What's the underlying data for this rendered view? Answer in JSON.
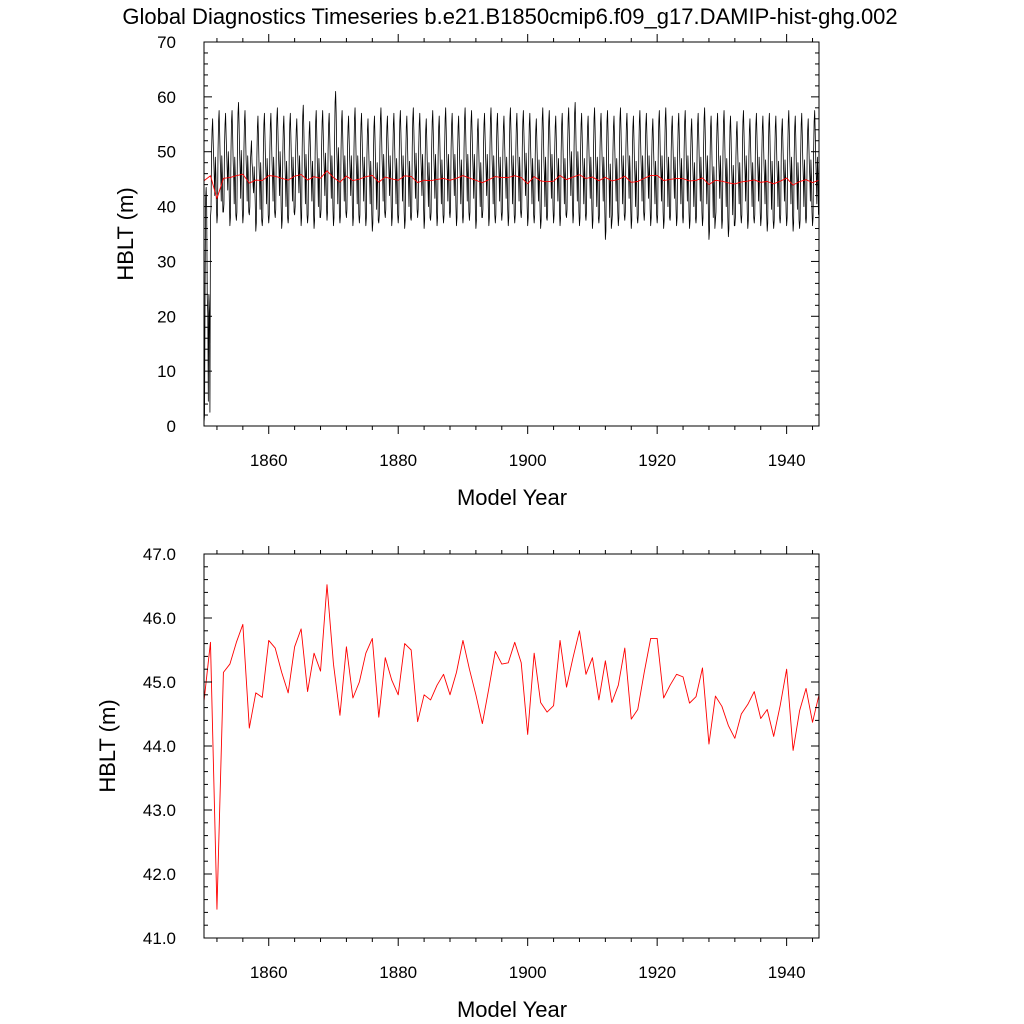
{
  "title": "Global Diagnostics Timeseries b.e21.B1850cmip6.f09_g17.DAMIP-hist-ghg.002",
  "colors": {
    "monthly": "#000000",
    "annual": "#ff0000",
    "axis": "#000000"
  },
  "chart_data": [
    {
      "type": "line",
      "xlabel": "Model Year",
      "ylabel": "HBLT (m)",
      "xlim": [
        1850,
        1945
      ],
      "ylim": [
        0,
        70
      ],
      "xticks": [
        1860,
        1880,
        1900,
        1920,
        1940
      ],
      "xtick_labels": [
        "1860",
        "1880",
        "1900",
        "1920",
        "1940"
      ],
      "yticks": [
        0,
        10,
        20,
        30,
        40,
        50,
        60,
        70
      ],
      "ytick_labels": [
        "0",
        "10",
        "20",
        "30",
        "40",
        "50",
        "60",
        "70"
      ],
      "grid": false,
      "series": [
        {
          "color": "#000000",
          "kind": "monthly",
          "x_start": 1850.0,
          "dx": 0.0833333,
          "seasonal_max": [
            43.5,
            56.0,
            57.5,
            57.0,
            57.5,
            59.0,
            57.5,
            52.0,
            56.5,
            57.0,
            57.0,
            58.0,
            56.5,
            57.0,
            56.0,
            58.5,
            55.5,
            57.5,
            57.5,
            57.0,
            61.0,
            57.5,
            56.5,
            58.0,
            57.0,
            56.0,
            56.5,
            58.0,
            56.5,
            57.0,
            57.5,
            56.5,
            58.0,
            57.0,
            56.0,
            57.5,
            56.5,
            58.0,
            57.0,
            56.5,
            58.0,
            57.5,
            56.0,
            57.0,
            58.0,
            57.0,
            56.5,
            58.0,
            57.0,
            57.5,
            57.0,
            56.0,
            58.0,
            57.5,
            56.5,
            57.0,
            58.0,
            59.0,
            57.0,
            56.5,
            58.0,
            57.0,
            57.5,
            56.5,
            58.0,
            57.0,
            56.5,
            57.5,
            57.0,
            56.0,
            57.5,
            58.0,
            56.5,
            57.0,
            57.5,
            56.0,
            57.0,
            58.0,
            56.5,
            57.0,
            57.5,
            56.5,
            55.5,
            57.5,
            56.0,
            57.0,
            56.5,
            57.0,
            56.5,
            56.0,
            57.5,
            56.5,
            57.0,
            56.0,
            57.5
          ],
          "seasonal_min": [
            0.5,
            38.0,
            37.0,
            39.0,
            36.5,
            37.5,
            37.0,
            38.5,
            35.5,
            36.5,
            37.0,
            38.0,
            36.0,
            37.0,
            38.5,
            36.5,
            37.0,
            36.0,
            38.0,
            37.5,
            36.5,
            37.0,
            38.0,
            36.5,
            37.0,
            36.5,
            35.5,
            37.0,
            38.0,
            36.5,
            37.0,
            36.0,
            37.5,
            38.0,
            36.0,
            37.5,
            36.5,
            37.0,
            38.0,
            36.5,
            37.0,
            37.5,
            36.0,
            38.0,
            36.5,
            37.0,
            37.5,
            36.5,
            37.0,
            38.0,
            36.5,
            37.0,
            36.0,
            37.5,
            37.0,
            36.5,
            38.0,
            37.0,
            36.5,
            37.5,
            36.0,
            37.0,
            34.0,
            37.0,
            36.5,
            37.5,
            36.0,
            37.0,
            37.5,
            36.5,
            37.0,
            36.0,
            37.5,
            36.5,
            37.0,
            36.0,
            37.0,
            36.5,
            34.0,
            37.5,
            36.0,
            34.5,
            36.5,
            37.0,
            36.0,
            37.0,
            36.5,
            35.5,
            36.0,
            37.0,
            36.5,
            35.5,
            36.0,
            37.0,
            36.5
          ]
        },
        {
          "color": "#ff0000",
          "kind": "annual",
          "x": [
            1850,
            1851,
            1852,
            1853,
            1854,
            1855,
            1856,
            1857,
            1858,
            1859,
            1860,
            1861,
            1862,
            1863,
            1864,
            1865,
            1866,
            1867,
            1868,
            1869,
            1870,
            1871,
            1872,
            1873,
            1874,
            1875,
            1876,
            1877,
            1878,
            1879,
            1880,
            1881,
            1882,
            1883,
            1884,
            1885,
            1886,
            1887,
            1888,
            1889,
            1890,
            1891,
            1892,
            1893,
            1894,
            1895,
            1896,
            1897,
            1898,
            1899,
            1900,
            1901,
            1902,
            1903,
            1904,
            1905,
            1906,
            1907,
            1908,
            1909,
            1910,
            1911,
            1912,
            1913,
            1914,
            1915,
            1916,
            1917,
            1918,
            1919,
            1920,
            1921,
            1922,
            1923,
            1924,
            1925,
            1926,
            1927,
            1928,
            1929,
            1930,
            1931,
            1932,
            1933,
            1934,
            1935,
            1936,
            1937,
            1938,
            1939,
            1940,
            1941,
            1942,
            1943,
            1944,
            1945
          ],
          "values": [
            44.7,
            45.62,
            41.45,
            45.15,
            45.28,
            45.62,
            45.9,
            44.28,
            44.83,
            44.76,
            45.65,
            45.53,
            45.15,
            44.83,
            45.55,
            45.83,
            44.85,
            45.45,
            45.17,
            46.52,
            45.28,
            44.48,
            45.55,
            44.75,
            45.0,
            45.45,
            45.68,
            44.45,
            45.38,
            45.03,
            44.8,
            45.6,
            45.5,
            44.38,
            44.8,
            44.72,
            44.95,
            45.12,
            44.8,
            45.15,
            45.65,
            45.2,
            44.8,
            44.35,
            44.9,
            45.48,
            45.28,
            45.3,
            45.62,
            45.3,
            44.18,
            45.45,
            44.68,
            44.53,
            44.63,
            45.65,
            44.92,
            45.38,
            45.8,
            45.12,
            45.38,
            44.72,
            45.33,
            44.68,
            44.95,
            45.53,
            44.42,
            44.57,
            45.15,
            45.68,
            45.68,
            44.75,
            44.95,
            45.12,
            45.08,
            44.67,
            44.77,
            45.22,
            44.03,
            44.78,
            44.62,
            44.32,
            44.12,
            44.5,
            44.65,
            44.85,
            44.43,
            44.57,
            44.15,
            44.63,
            45.2,
            43.93,
            44.55,
            44.9,
            44.37,
            44.8
          ]
        }
      ]
    },
    {
      "type": "line",
      "xlabel": "Model Year",
      "ylabel": "HBLT (m)",
      "xlim": [
        1850,
        1945
      ],
      "ylim": [
        41.0,
        47.0
      ],
      "xticks": [
        1860,
        1880,
        1900,
        1920,
        1940
      ],
      "xtick_labels": [
        "1860",
        "1880",
        "1900",
        "1920",
        "1940"
      ],
      "yticks": [
        41,
        42,
        43,
        44,
        45,
        46,
        47
      ],
      "ytick_labels": [
        "41.0",
        "42.0",
        "43.0",
        "44.0",
        "45.0",
        "46.0",
        "47.0"
      ],
      "grid": false,
      "series": [
        {
          "color": "#ff0000",
          "kind": "annual",
          "x": [
            1850,
            1851,
            1852,
            1853,
            1854,
            1855,
            1856,
            1857,
            1858,
            1859,
            1860,
            1861,
            1862,
            1863,
            1864,
            1865,
            1866,
            1867,
            1868,
            1869,
            1870,
            1871,
            1872,
            1873,
            1874,
            1875,
            1876,
            1877,
            1878,
            1879,
            1880,
            1881,
            1882,
            1883,
            1884,
            1885,
            1886,
            1887,
            1888,
            1889,
            1890,
            1891,
            1892,
            1893,
            1894,
            1895,
            1896,
            1897,
            1898,
            1899,
            1900,
            1901,
            1902,
            1903,
            1904,
            1905,
            1906,
            1907,
            1908,
            1909,
            1910,
            1911,
            1912,
            1913,
            1914,
            1915,
            1916,
            1917,
            1918,
            1919,
            1920,
            1921,
            1922,
            1923,
            1924,
            1925,
            1926,
            1927,
            1928,
            1929,
            1930,
            1931,
            1932,
            1933,
            1934,
            1935,
            1936,
            1937,
            1938,
            1939,
            1940,
            1941,
            1942,
            1943,
            1944,
            1945
          ],
          "values": [
            44.7,
            45.62,
            41.45,
            45.15,
            45.28,
            45.62,
            45.9,
            44.28,
            44.83,
            44.76,
            45.65,
            45.53,
            45.15,
            44.83,
            45.55,
            45.83,
            44.85,
            45.45,
            45.17,
            46.52,
            45.28,
            44.48,
            45.55,
            44.75,
            45.0,
            45.45,
            45.68,
            44.45,
            45.38,
            45.03,
            44.8,
            45.6,
            45.5,
            44.38,
            44.8,
            44.72,
            44.95,
            45.12,
            44.8,
            45.15,
            45.65,
            45.2,
            44.8,
            44.35,
            44.9,
            45.48,
            45.28,
            45.3,
            45.62,
            45.3,
            44.18,
            45.45,
            44.68,
            44.53,
            44.63,
            45.65,
            44.92,
            45.38,
            45.8,
            45.12,
            45.38,
            44.72,
            45.33,
            44.68,
            44.95,
            45.53,
            44.42,
            44.57,
            45.15,
            45.68,
            45.68,
            44.75,
            44.95,
            45.12,
            45.08,
            44.67,
            44.77,
            45.22,
            44.03,
            44.78,
            44.62,
            44.32,
            44.12,
            44.5,
            44.65,
            44.85,
            44.43,
            44.57,
            44.15,
            44.63,
            45.2,
            43.93,
            44.55,
            44.9,
            44.37,
            44.8
          ]
        }
      ]
    }
  ]
}
